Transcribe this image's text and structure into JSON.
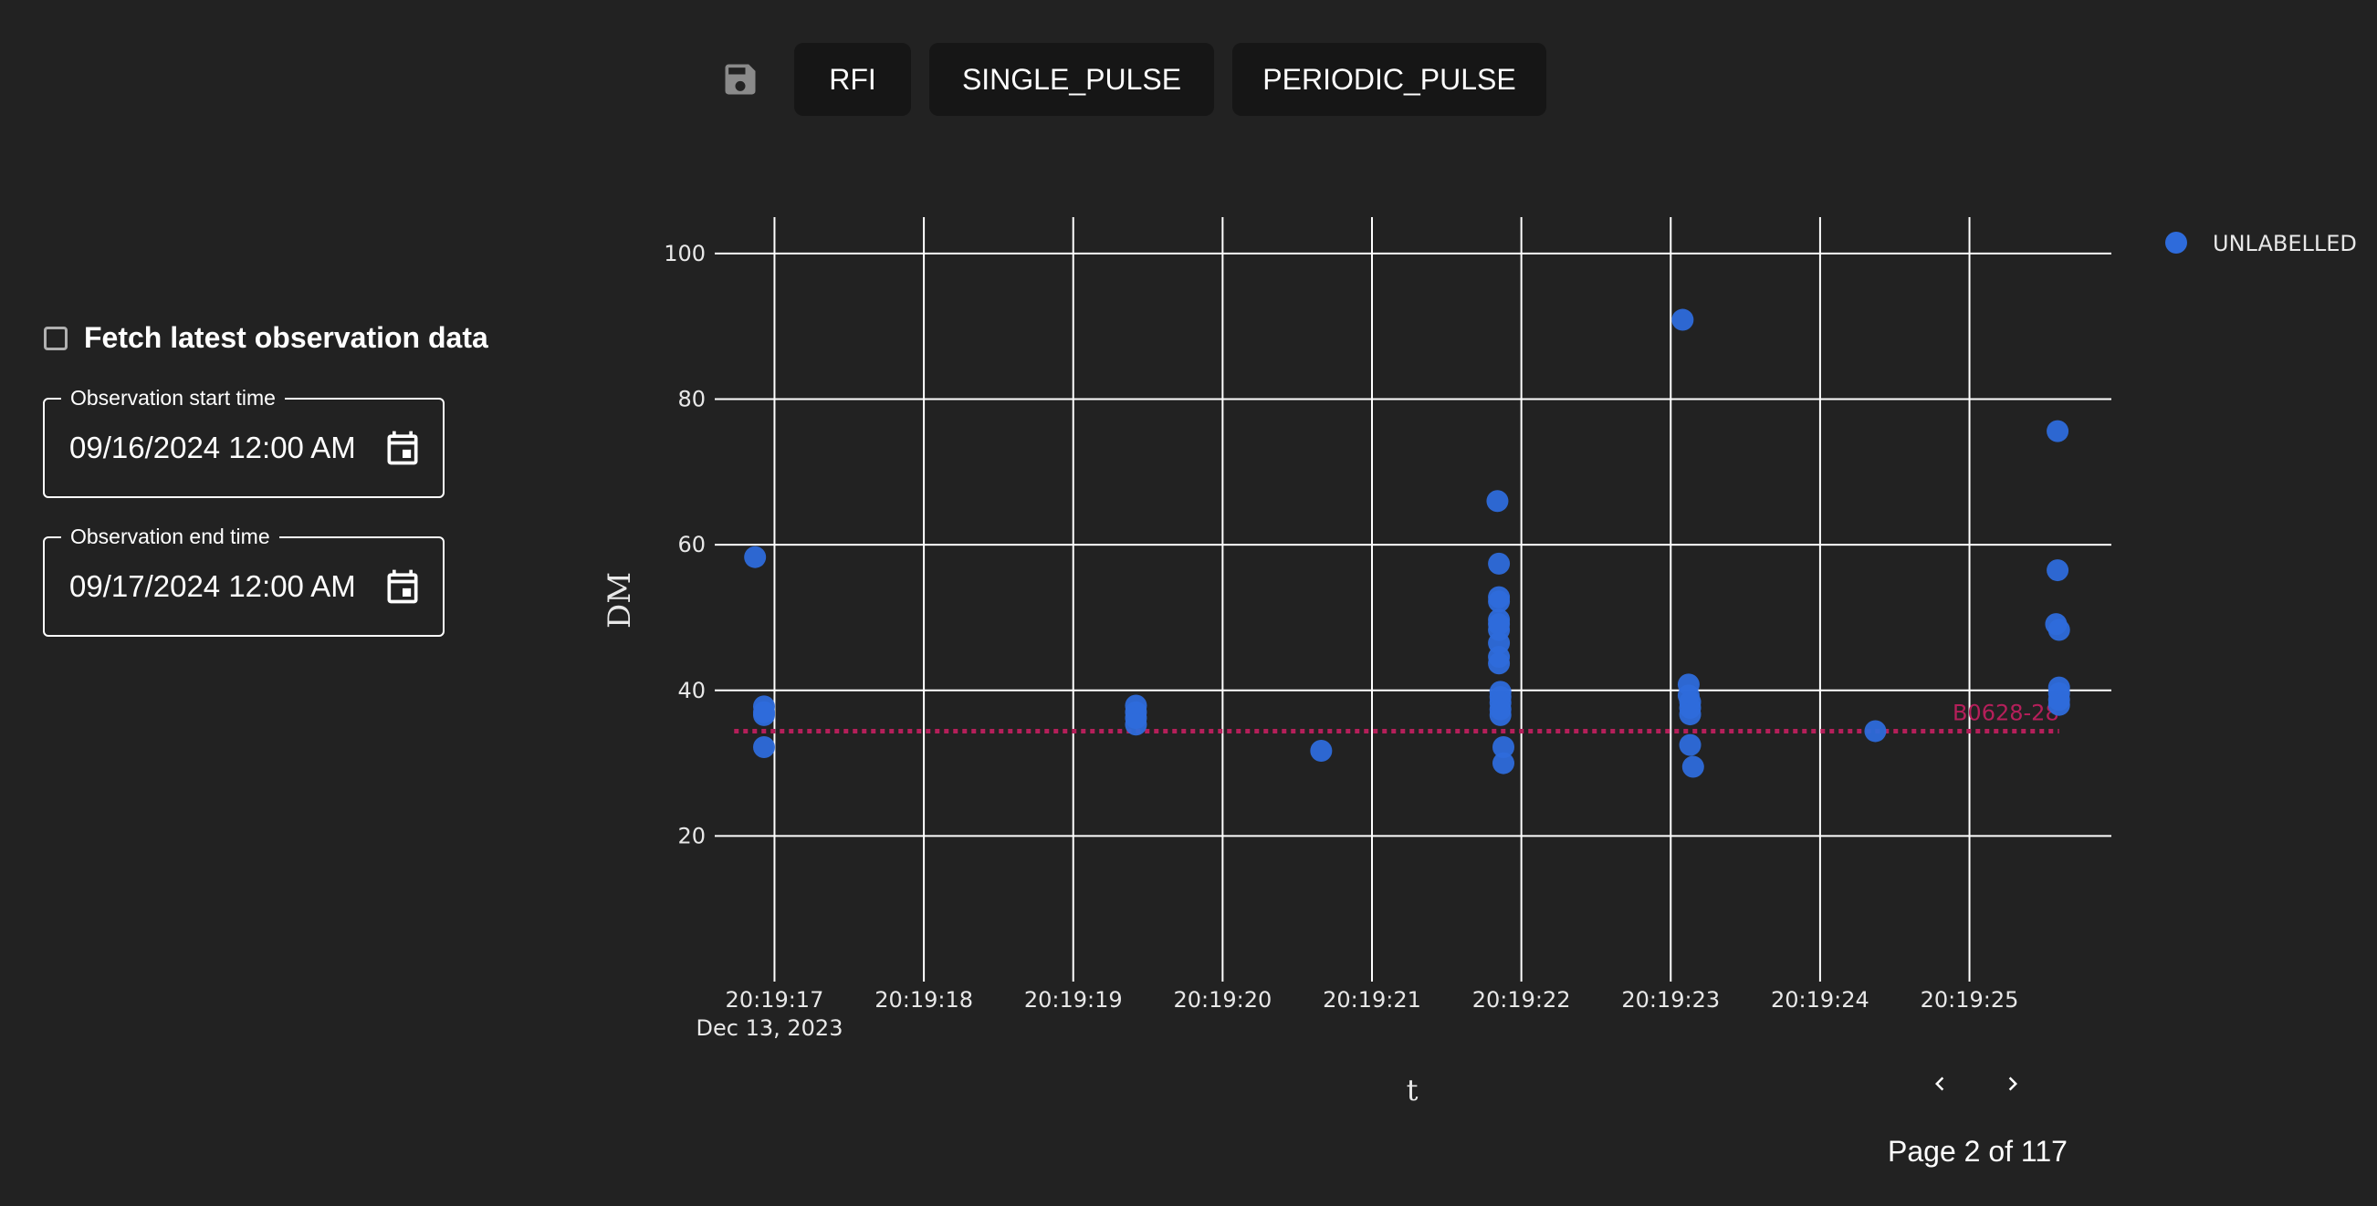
{
  "toolbar": {
    "save_icon": "floppy-disk-icon",
    "buttons": [
      "RFI",
      "SINGLE_PULSE",
      "PERIODIC_PULSE"
    ]
  },
  "sidebar": {
    "fetch_label": "Fetch latest observation data",
    "fetch_checked": false,
    "start": {
      "label": "Observation start time",
      "value": "09/16/2024 12:00 AM",
      "icon": "calendar-icon"
    },
    "end": {
      "label": "Observation end time",
      "value": "09/17/2024 12:00 AM",
      "icon": "calendar-icon"
    }
  },
  "pagination": {
    "prev_icon": "chevron-left-icon",
    "next_icon": "chevron-right-icon",
    "text": "Page 2 of 117"
  },
  "colors": {
    "background": "#222222",
    "marker": "#2e6bdb",
    "reference_line": "#b51f5a",
    "button_bg": "#161616",
    "grid": "#ffffff"
  },
  "chart_data": {
    "type": "scatter",
    "xlabel": "t",
    "ylabel": "DM",
    "date_label": "Dec 13, 2023",
    "x_tick_labels": [
      "20:19:17",
      "20:19:18",
      "20:19:19",
      "20:19:20",
      "20:19:21",
      "20:19:22",
      "20:19:23",
      "20:19:24",
      "20:19:25"
    ],
    "y_ticks": [
      20,
      40,
      60,
      80,
      100
    ],
    "xlim": [
      "20:19:16.60",
      "20:19:25.95"
    ],
    "ylim": [
      0,
      105
    ],
    "grid": true,
    "legend": {
      "position": "top-right",
      "entries": [
        "UNLABELLED"
      ]
    },
    "reference_line": {
      "label": "B0628-28",
      "dm": 34.4,
      "x_start": "20:19:16.73",
      "x_end": "20:19:25.60",
      "style": "dotted"
    },
    "series": [
      {
        "name": "UNLABELLED",
        "points": [
          [
            "20:19:16.87",
            58.3
          ],
          [
            "20:19:16.93",
            37.8
          ],
          [
            "20:19:16.93",
            37.0
          ],
          [
            "20:19:16.93",
            36.6
          ],
          [
            "20:19:16.93",
            32.2
          ],
          [
            "20:19:19.42",
            37.9
          ],
          [
            "20:19:19.42",
            37.0
          ],
          [
            "20:19:19.42",
            36.2
          ],
          [
            "20:19:19.42",
            35.3
          ],
          [
            "20:19:20.66",
            31.7
          ],
          [
            "20:19:21.84",
            66.0
          ],
          [
            "20:19:21.85",
            57.4
          ],
          [
            "20:19:21.85",
            52.8
          ],
          [
            "20:19:21.85",
            52.2
          ],
          [
            "20:19:21.85",
            49.7
          ],
          [
            "20:19:21.85",
            49.1
          ],
          [
            "20:19:21.85",
            48.3
          ],
          [
            "20:19:21.85",
            46.5
          ],
          [
            "20:19:21.85",
            44.6
          ],
          [
            "20:19:21.85",
            43.7
          ],
          [
            "20:19:21.86",
            39.8
          ],
          [
            "20:19:21.86",
            39.1
          ],
          [
            "20:19:21.86",
            38.3
          ],
          [
            "20:19:21.86",
            37.4
          ],
          [
            "20:19:21.86",
            36.6
          ],
          [
            "20:19:21.88",
            32.2
          ],
          [
            "20:19:21.88",
            30.0
          ],
          [
            "20:19:23.08",
            90.9
          ],
          [
            "20:19:23.12",
            40.8
          ],
          [
            "20:19:23.12",
            39.3
          ],
          [
            "20:19:23.13",
            38.4
          ],
          [
            "20:19:23.13",
            37.6
          ],
          [
            "20:19:23.13",
            36.7
          ],
          [
            "20:19:23.13",
            32.5
          ],
          [
            "20:19:23.15",
            29.5
          ],
          [
            "20:19:24.37",
            34.4
          ],
          [
            "20:19:25.59",
            75.6
          ],
          [
            "20:19:25.59",
            56.5
          ],
          [
            "20:19:25.58",
            49.1
          ],
          [
            "20:19:25.60",
            48.3
          ],
          [
            "20:19:25.60",
            40.4
          ],
          [
            "20:19:25.60",
            39.6
          ],
          [
            "20:19:25.60",
            38.7
          ],
          [
            "20:19:25.60",
            38.0
          ]
        ]
      }
    ]
  }
}
